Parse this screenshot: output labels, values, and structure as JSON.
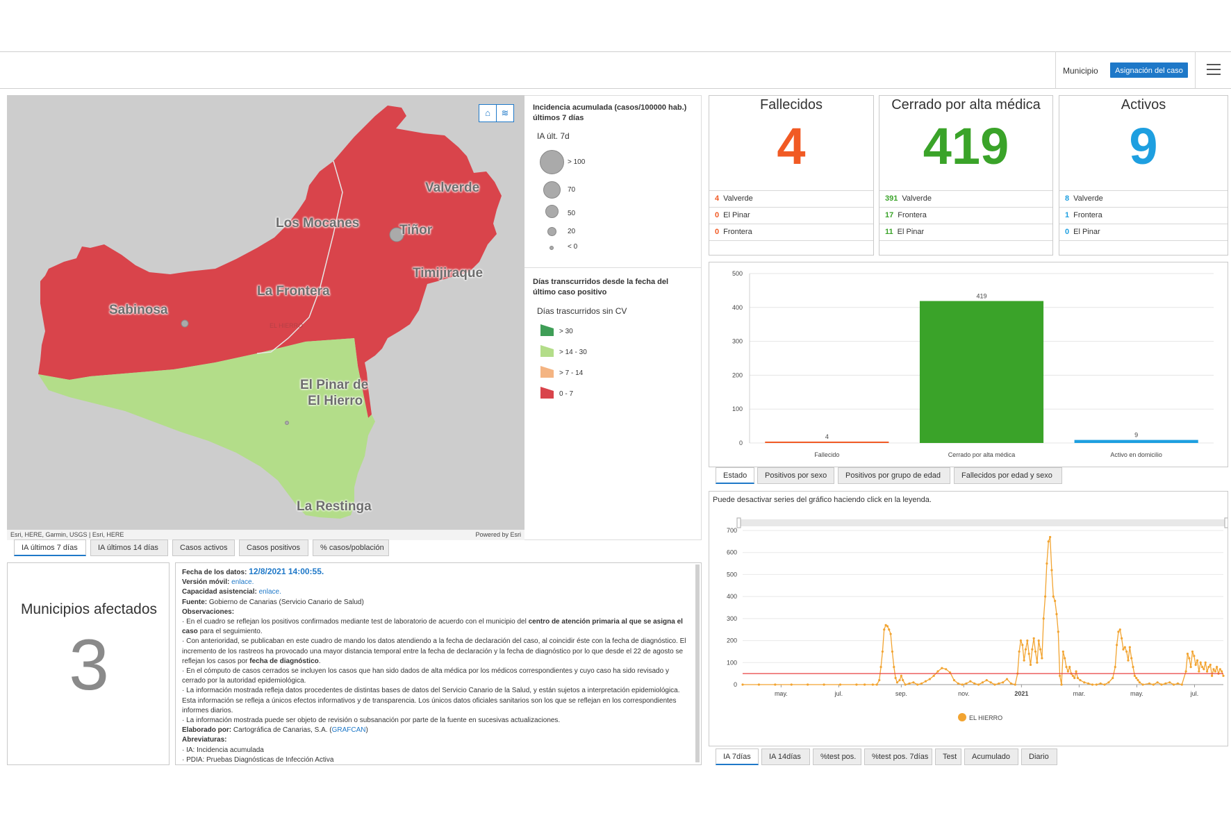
{
  "header": {
    "label": "Municipio",
    "button": "Asignación del caso",
    "menu_icon": "hamburger-menu-icon"
  },
  "map": {
    "labels": {
      "valverde": "Valverde",
      "los_mocanes": "Los Mocanes",
      "tinor": "Tiñor",
      "timijiraque": "Timijiraque",
      "la_frontera": "La Frontera",
      "sabinosa": "Sabinosa",
      "el_hierro": "EL HIERRO",
      "el_pinar_1": "El Pinar de",
      "el_pinar_2": "El Hierro",
      "la_restinga": "La Restinga"
    },
    "attribution": "Esri, HERE, Garmin, USGS | Esri, HERE",
    "powered_by": "Powered by Esri",
    "controls": {
      "home": "home-icon",
      "layers": "layers-icon"
    },
    "colors": {
      "red": "#d9444b",
      "green": "#b3dd89",
      "sea": "#cdcdcd"
    }
  },
  "legend": {
    "title1": "Incidencia acumulada (casos/100000 hab.) últimos 7 días",
    "sub1": "IA últ. 7d",
    "circles": [
      "> 100",
      "70",
      "50",
      "20",
      "< 0"
    ],
    "title2": "Días transcurridos desde la fecha del último caso positivo",
    "sub2": "Días trascurridos sin CV",
    "swatches": [
      {
        "label": "> 30",
        "color": "#3f9e57"
      },
      {
        "label": "> 14 - 30",
        "color": "#b3dd89"
      },
      {
        "label": "> 7 - 14",
        "color": "#f4b482"
      },
      {
        "label": "0 - 7",
        "color": "#d9444b"
      }
    ]
  },
  "map_tabs": [
    "IA últimos 7 días",
    "IA últimos 14 días",
    "Casos activos",
    "Casos positivos",
    "% casos/población"
  ],
  "municipios": {
    "title": "Municipios afectados",
    "value": "3"
  },
  "info": {
    "fecha_label": "Fecha de los datos:",
    "fecha_value": "12/8/2021 14:00:55.",
    "movil_label": "Versión móvil:",
    "movil_link": "enlace.",
    "capacidad_label": "Capacidad asistencial:",
    "capacidad_link": "enlace.",
    "fuente_label": "Fuente:",
    "fuente_value": "Gobierno de Canarias (Servicio Canario de Salud)",
    "obs_label": "Observaciones:",
    "obs1a": "· En el cuadro se reflejan los positivos confirmados mediante test de laboratorio de acuerdo con el municipio del ",
    "obs1b": "centro de atención primaria al que se asigna el caso",
    "obs1c": " para el seguimiento.",
    "obs2a": "· Con anterioridad, se publicaban en este cuadro de mando los datos atendiendo a la fecha de declaración del caso, al coincidir éste con la fecha de diagnóstico. El incremento de los rastreos ha provocado una mayor distancia temporal entre la fecha de declaración y la fecha de diagnóstico por lo que desde el 22 de agosto se reflejan los casos por ",
    "obs2b": "fecha de diagnóstico",
    "obs2c": ".",
    "obs3": "· En el cómputo de casos cerrados se incluyen los casos que han sido dados de alta médica por los médicos correspondientes y cuyo caso ha sido revisado y cerrado por la autoridad epidemiológica.",
    "obs4": "· La información mostrada refleja datos procedentes de distintas bases de datos del Servicio Canario de la Salud, y están sujetos a interpretación epidemiológica. Esta información se refleja a únicos efectos informativos y de transparencia. Los únicos datos oficiales sanitarios son los que se reflejan en los correspondientes informes diarios.",
    "obs5": "· La información mostrada puede ser objeto de revisión o subsanación por parte de la fuente en sucesivas actualizaciones.",
    "elab_label": "Elaborado por:",
    "elab_value": "Cartográfica de Canarias, S.A. (",
    "elab_link": "GRAFCAN",
    "elab_end": ")",
    "abrev_label": "Abreviaturas:",
    "abrev1": "· IA: Incidencia acumulada",
    "abrev2": "· PDIA:  Pruebas Diagnósticas de Infección Activa"
  },
  "indicators": [
    {
      "title": "Fallecidos",
      "value": "4",
      "color": "#f15a24",
      "rows": [
        {
          "n": "4",
          "name": "Valverde"
        },
        {
          "n": "0",
          "name": "El Pinar"
        },
        {
          "n": "0",
          "name": "Frontera"
        }
      ]
    },
    {
      "title": "Cerrado por alta médica",
      "value": "419",
      "color": "#3aa329",
      "rows": [
        {
          "n": "391",
          "name": "Valverde"
        },
        {
          "n": "17",
          "name": "Frontera"
        },
        {
          "n": "11",
          "name": "El Pinar"
        }
      ]
    },
    {
      "title": "Activos",
      "value": "9",
      "color": "#1e9fe0",
      "rows": [
        {
          "n": "8",
          "name": "Valverde"
        },
        {
          "n": "1",
          "name": "Frontera"
        },
        {
          "n": "0",
          "name": "El Pinar"
        }
      ]
    }
  ],
  "chart_tabs": [
    "Estado",
    "Positivos por sexo",
    "Positivos por grupo de edad",
    "Fallecidos por edad y sexo"
  ],
  "line_note": "Puede desactivar series del gráfico haciendo click en la leyenda.",
  "line_tabs": [
    "IA 7días",
    "IA 14días",
    "%test pos.",
    "%test pos. 7días",
    "Test",
    "Acumulado",
    "Diario"
  ],
  "chart_data": [
    {
      "type": "bar",
      "categories": [
        "Fallecido",
        "Cerrado por alta médica",
        "Activo en domicilio"
      ],
      "values": [
        4,
        419,
        9
      ],
      "colors": [
        "#f15a24",
        "#3aa329",
        "#1e9fe0"
      ],
      "ylim": [
        0,
        500
      ],
      "yticks": [
        0,
        100,
        200,
        300,
        400,
        500
      ],
      "grid": true
    },
    {
      "type": "line",
      "series": [
        {
          "name": "EL HIERRO",
          "color": "#f2a431"
        }
      ],
      "x_ticks": [
        "may.",
        "jul.",
        "sep.",
        "nov.",
        "2021",
        "mar.",
        "may.",
        "jul."
      ],
      "ylim": [
        0,
        700
      ],
      "yticks": [
        0,
        100,
        200,
        300,
        400,
        500,
        600,
        700
      ],
      "threshold": 50,
      "threshold_color": "#e84040",
      "grid": true,
      "legend": "bottom",
      "points": [
        [
          0,
          0
        ],
        [
          20,
          0
        ],
        [
          40,
          0
        ],
        [
          60,
          0
        ],
        [
          80,
          0
        ],
        [
          100,
          0
        ],
        [
          120,
          0
        ],
        [
          140,
          0
        ],
        [
          150,
          0
        ],
        [
          160,
          0
        ],
        [
          165,
          0
        ],
        [
          168,
          20
        ],
        [
          170,
          80
        ],
        [
          172,
          150
        ],
        [
          174,
          250
        ],
        [
          176,
          270
        ],
        [
          178,
          265
        ],
        [
          180,
          250
        ],
        [
          182,
          230
        ],
        [
          184,
          150
        ],
        [
          186,
          80
        ],
        [
          188,
          30
        ],
        [
          190,
          10
        ],
        [
          193,
          20
        ],
        [
          195,
          40
        ],
        [
          197,
          20
        ],
        [
          200,
          0
        ],
        [
          205,
          5
        ],
        [
          210,
          10
        ],
        [
          215,
          0
        ],
        [
          220,
          5
        ],
        [
          225,
          15
        ],
        [
          230,
          25
        ],
        [
          235,
          40
        ],
        [
          240,
          60
        ],
        [
          245,
          75
        ],
        [
          250,
          70
        ],
        [
          255,
          55
        ],
        [
          260,
          20
        ],
        [
          265,
          5
        ],
        [
          270,
          0
        ],
        [
          275,
          5
        ],
        [
          280,
          15
        ],
        [
          285,
          5
        ],
        [
          290,
          0
        ],
        [
          295,
          10
        ],
        [
          300,
          20
        ],
        [
          305,
          10
        ],
        [
          310,
          0
        ],
        [
          315,
          5
        ],
        [
          320,
          10
        ],
        [
          325,
          25
        ],
        [
          330,
          5
        ],
        [
          335,
          0
        ],
        [
          338,
          50
        ],
        [
          340,
          150
        ],
        [
          342,
          200
        ],
        [
          344,
          180
        ],
        [
          346,
          110
        ],
        [
          348,
          160
        ],
        [
          350,
          200
        ],
        [
          352,
          140
        ],
        [
          354,
          90
        ],
        [
          356,
          160
        ],
        [
          358,
          210
        ],
        [
          360,
          150
        ],
        [
          362,
          100
        ],
        [
          364,
          200
        ],
        [
          366,
          160
        ],
        [
          368,
          120
        ],
        [
          370,
          300
        ],
        [
          372,
          400
        ],
        [
          374,
          550
        ],
        [
          376,
          650
        ],
        [
          378,
          670
        ],
        [
          380,
          520
        ],
        [
          382,
          400
        ],
        [
          384,
          380
        ],
        [
          386,
          320
        ],
        [
          388,
          240
        ],
        [
          390,
          40
        ],
        [
          392,
          0
        ],
        [
          394,
          150
        ],
        [
          396,
          120
        ],
        [
          398,
          80
        ],
        [
          400,
          60
        ],
        [
          402,
          80
        ],
        [
          404,
          50
        ],
        [
          406,
          40
        ],
        [
          408,
          30
        ],
        [
          410,
          60
        ],
        [
          412,
          30
        ],
        [
          415,
          20
        ],
        [
          420,
          10
        ],
        [
          425,
          5
        ],
        [
          430,
          0
        ],
        [
          435,
          0
        ],
        [
          440,
          5
        ],
        [
          445,
          0
        ],
        [
          450,
          10
        ],
        [
          455,
          30
        ],
        [
          458,
          80
        ],
        [
          460,
          180
        ],
        [
          462,
          240
        ],
        [
          464,
          250
        ],
        [
          466,
          210
        ],
        [
          468,
          160
        ],
        [
          470,
          170
        ],
        [
          472,
          150
        ],
        [
          474,
          110
        ],
        [
          476,
          170
        ],
        [
          478,
          120
        ],
        [
          480,
          80
        ],
        [
          482,
          40
        ],
        [
          484,
          30
        ],
        [
          486,
          20
        ],
        [
          488,
          10
        ],
        [
          492,
          0
        ],
        [
          500,
          5
        ],
        [
          505,
          0
        ],
        [
          510,
          10
        ],
        [
          515,
          0
        ],
        [
          520,
          5
        ],
        [
          525,
          10
        ],
        [
          530,
          0
        ],
        [
          535,
          5
        ],
        [
          540,
          0
        ],
        [
          545,
          60
        ],
        [
          547,
          140
        ],
        [
          549,
          120
        ],
        [
          551,
          80
        ],
        [
          553,
          150
        ],
        [
          555,
          130
        ],
        [
          557,
          90
        ],
        [
          559,
          110
        ],
        [
          561,
          60
        ],
        [
          563,
          100
        ],
        [
          565,
          80
        ],
        [
          567,
          70
        ],
        [
          569,
          100
        ],
        [
          571,
          60
        ],
        [
          573,
          80
        ],
        [
          575,
          90
        ],
        [
          577,
          40
        ],
        [
          579,
          70
        ],
        [
          581,
          60
        ],
        [
          583,
          80
        ],
        [
          585,
          50
        ],
        [
          587,
          70
        ],
        [
          589,
          60
        ],
        [
          591,
          40
        ]
      ]
    }
  ]
}
